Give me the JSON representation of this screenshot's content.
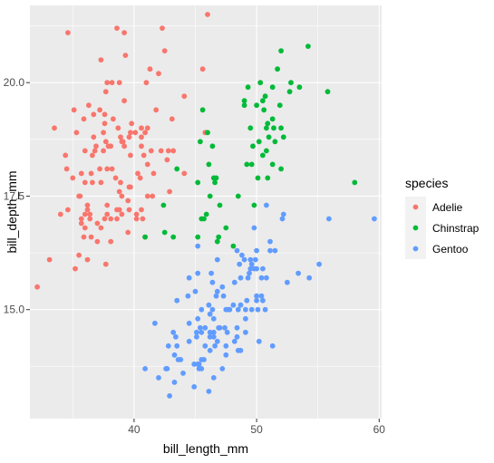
{
  "chart_data": {
    "type": "scatter",
    "title": "",
    "xlabel": "bill_length_mm",
    "ylabel": "bill_depth_mm",
    "xlim": [
      31.5,
      60.2
    ],
    "ylim": [
      12.6,
      21.7
    ],
    "x_ticks": [
      40,
      50,
      60
    ],
    "y_ticks": [
      15.0,
      17.5,
      20.0
    ],
    "x_tick_labels": [
      "40",
      "50",
      "60"
    ],
    "y_tick_labels": [
      "15.0",
      "17.5",
      "20.0"
    ],
    "grid": true,
    "legend": {
      "title": "species",
      "position": "right"
    },
    "series": [
      {
        "name": "Adelie",
        "color": "#F8766D",
        "points": [
          [
            32.1,
            15.5
          ],
          [
            33.1,
            16.1
          ],
          [
            33.5,
            19.0
          ],
          [
            34.0,
            17.1
          ],
          [
            34.4,
            18.4
          ],
          [
            34.5,
            18.1
          ],
          [
            34.6,
            17.2
          ],
          [
            34.6,
            21.1
          ],
          [
            35.0,
            17.9
          ],
          [
            35.1,
            19.4
          ],
          [
            35.2,
            15.9
          ],
          [
            35.3,
            18.9
          ],
          [
            35.5,
            16.2
          ],
          [
            35.5,
            17.5
          ],
          [
            35.6,
            17.5
          ],
          [
            35.7,
            16.9
          ],
          [
            35.7,
            17.0
          ],
          [
            35.7,
            18.0
          ],
          [
            35.9,
            16.6
          ],
          [
            35.9,
            19.2
          ],
          [
            36.0,
            16.8
          ],
          [
            36.0,
            17.1
          ],
          [
            36.0,
            17.8
          ],
          [
            36.0,
            18.5
          ],
          [
            36.2,
            16.1
          ],
          [
            36.2,
            17.2
          ],
          [
            36.2,
            17.3
          ],
          [
            36.3,
            19.5
          ],
          [
            36.4,
            17.0
          ],
          [
            36.4,
            17.1
          ],
          [
            36.5,
            16.6
          ],
          [
            36.5,
            18.0
          ],
          [
            36.6,
            17.8
          ],
          [
            36.6,
            18.4
          ],
          [
            36.7,
            18.8
          ],
          [
            36.7,
            19.3
          ],
          [
            36.8,
            18.5
          ],
          [
            36.9,
            18.6
          ],
          [
            37.0,
            16.5
          ],
          [
            37.0,
            16.9
          ],
          [
            37.2,
            18.1
          ],
          [
            37.2,
            19.4
          ],
          [
            37.3,
            16.8
          ],
          [
            37.3,
            17.8
          ],
          [
            37.3,
            20.5
          ],
          [
            37.5,
            18.5
          ],
          [
            37.5,
            18.9
          ],
          [
            37.6,
            17.0
          ],
          [
            37.6,
            19.1
          ],
          [
            37.6,
            19.3
          ],
          [
            37.7,
            16.0
          ],
          [
            37.7,
            18.7
          ],
          [
            37.7,
            19.8
          ],
          [
            37.8,
            17.1
          ],
          [
            37.8,
            17.3
          ],
          [
            37.8,
            18.1
          ],
          [
            37.8,
            20.0
          ],
          [
            37.9,
            18.6
          ],
          [
            38.1,
            16.5
          ],
          [
            38.1,
            17.0
          ],
          [
            38.1,
            18.6
          ],
          [
            38.2,
            18.1
          ],
          [
            38.2,
            20.0
          ],
          [
            38.3,
            19.2
          ],
          [
            38.5,
            17.9
          ],
          [
            38.6,
            17.0
          ],
          [
            38.6,
            17.2
          ],
          [
            38.6,
            21.2
          ],
          [
            38.7,
            19.0
          ],
          [
            38.8,
            17.2
          ],
          [
            38.8,
            17.6
          ],
          [
            38.8,
            20.0
          ],
          [
            38.9,
            17.8
          ],
          [
            38.9,
            18.8
          ],
          [
            39.0,
            17.1
          ],
          [
            39.0,
            17.5
          ],
          [
            39.0,
            18.7
          ],
          [
            39.1,
            18.7
          ],
          [
            39.2,
            18.6
          ],
          [
            39.2,
            19.6
          ],
          [
            39.2,
            21.1
          ],
          [
            39.3,
            20.6
          ],
          [
            39.5,
            16.7
          ],
          [
            39.5,
            17.4
          ],
          [
            39.6,
            17.2
          ],
          [
            39.6,
            17.7
          ],
          [
            39.6,
            18.8
          ],
          [
            39.7,
            17.7
          ],
          [
            39.7,
            18.4
          ],
          [
            39.7,
            18.9
          ],
          [
            39.8,
            19.1
          ],
          [
            40.1,
            18.9
          ],
          [
            40.2,
            17.0
          ],
          [
            40.2,
            17.1
          ],
          [
            40.3,
            18.0
          ],
          [
            40.5,
            17.9
          ],
          [
            40.6,
            17.2
          ],
          [
            40.6,
            18.6
          ],
          [
            40.6,
            18.8
          ],
          [
            40.6,
            19.0
          ],
          [
            40.7,
            17.0
          ],
          [
            40.8,
            18.4
          ],
          [
            40.9,
            16.6
          ],
          [
            40.9,
            18.9
          ],
          [
            41.0,
            20.0
          ],
          [
            41.1,
            17.5
          ],
          [
            41.1,
            18.2
          ],
          [
            41.1,
            19.0
          ],
          [
            41.3,
            20.3
          ],
          [
            41.4,
            18.5
          ],
          [
            41.5,
            17.5
          ],
          [
            41.6,
            18.0
          ],
          [
            41.8,
            19.4
          ],
          [
            42.0,
            20.2
          ],
          [
            42.2,
            18.5
          ],
          [
            42.3,
            21.2
          ],
          [
            42.5,
            20.7
          ],
          [
            42.7,
            18.3
          ],
          [
            42.8,
            18.5
          ],
          [
            42.9,
            17.6
          ],
          [
            43.1,
            19.2
          ],
          [
            43.2,
            18.5
          ],
          [
            44.1,
            18.0
          ],
          [
            44.1,
            19.7
          ],
          [
            45.6,
            20.3
          ],
          [
            45.8,
            18.9
          ],
          [
            46.0,
            21.5
          ]
        ]
      },
      {
        "name": "Chinstrap",
        "color": "#00BA38",
        "points": [
          [
            40.9,
            16.6
          ],
          [
            42.4,
            17.3
          ],
          [
            42.5,
            16.7
          ],
          [
            43.2,
            16.6
          ],
          [
            43.5,
            18.1
          ],
          [
            45.2,
            16.6
          ],
          [
            45.2,
            17.8
          ],
          [
            45.4,
            18.7
          ],
          [
            45.5,
            17.0
          ],
          [
            45.6,
            19.4
          ],
          [
            45.7,
            17.0
          ],
          [
            45.9,
            17.1
          ],
          [
            46.0,
            18.9
          ],
          [
            46.1,
            18.2
          ],
          [
            46.2,
            17.5
          ],
          [
            46.4,
            18.6
          ],
          [
            46.5,
            17.9
          ],
          [
            46.6,
            17.8
          ],
          [
            46.7,
            17.9
          ],
          [
            46.8,
            16.5
          ],
          [
            46.9,
            16.6
          ],
          [
            47.0,
            17.3
          ],
          [
            47.5,
            16.8
          ],
          [
            48.1,
            16.4
          ],
          [
            48.5,
            17.5
          ],
          [
            49.0,
            19.5
          ],
          [
            49.0,
            19.6
          ],
          [
            49.2,
            18.2
          ],
          [
            49.3,
            19.9
          ],
          [
            49.5,
            19.0
          ],
          [
            49.6,
            18.2
          ],
          [
            49.7,
            18.6
          ],
          [
            49.8,
            17.3
          ],
          [
            50.0,
            19.5
          ],
          [
            50.1,
            17.9
          ],
          [
            50.2,
            18.7
          ],
          [
            50.3,
            20.0
          ],
          [
            50.5,
            18.4
          ],
          [
            50.5,
            19.6
          ],
          [
            50.6,
            19.4
          ],
          [
            50.7,
            19.7
          ],
          [
            50.8,
            18.5
          ],
          [
            50.8,
            19.0
          ],
          [
            50.9,
            17.9
          ],
          [
            50.9,
            19.1
          ],
          [
            51.0,
            18.8
          ],
          [
            51.3,
            18.2
          ],
          [
            51.3,
            19.2
          ],
          [
            51.3,
            19.9
          ],
          [
            51.4,
            19.0
          ],
          [
            51.5,
            18.7
          ],
          [
            51.7,
            20.3
          ],
          [
            51.9,
            19.5
          ],
          [
            52.0,
            18.1
          ],
          [
            52.0,
            19.0
          ],
          [
            52.0,
            20.7
          ],
          [
            52.2,
            18.8
          ],
          [
            52.7,
            19.8
          ],
          [
            52.8,
            20.0
          ],
          [
            53.5,
            19.9
          ],
          [
            54.2,
            20.8
          ],
          [
            55.8,
            19.8
          ],
          [
            58.0,
            17.8
          ]
        ]
      },
      {
        "name": "Gentoo",
        "color": "#619CFF",
        "points": [
          [
            40.9,
            13.7
          ],
          [
            41.7,
            14.7
          ],
          [
            42.0,
            13.5
          ],
          [
            42.6,
            13.7
          ],
          [
            42.7,
            13.7
          ],
          [
            42.8,
            14.2
          ],
          [
            42.9,
            13.1
          ],
          [
            43.2,
            14.5
          ],
          [
            43.3,
            13.4
          ],
          [
            43.3,
            14.0
          ],
          [
            43.4,
            14.4
          ],
          [
            43.5,
            14.2
          ],
          [
            43.5,
            15.2
          ],
          [
            43.6,
            13.9
          ],
          [
            43.8,
            13.9
          ],
          [
            44.0,
            13.6
          ],
          [
            44.4,
            15.3
          ],
          [
            44.5,
            14.3
          ],
          [
            44.5,
            14.7
          ],
          [
            44.5,
            15.7
          ],
          [
            44.9,
            13.3
          ],
          [
            44.9,
            13.8
          ],
          [
            45.0,
            15.4
          ],
          [
            45.1,
            14.4
          ],
          [
            45.1,
            14.5
          ],
          [
            45.2,
            13.8
          ],
          [
            45.2,
            14.8
          ],
          [
            45.2,
            15.8
          ],
          [
            45.2,
            16.4
          ],
          [
            45.3,
            13.7
          ],
          [
            45.3,
            13.8
          ],
          [
            45.4,
            14.6
          ],
          [
            45.5,
            13.7
          ],
          [
            45.5,
            13.9
          ],
          [
            45.5,
            14.5
          ],
          [
            45.5,
            15.0
          ],
          [
            45.7,
            13.9
          ],
          [
            45.8,
            14.2
          ],
          [
            45.8,
            14.6
          ],
          [
            46.1,
            13.2
          ],
          [
            46.1,
            15.1
          ],
          [
            46.2,
            14.1
          ],
          [
            46.2,
            14.4
          ],
          [
            46.2,
            14.5
          ],
          [
            46.2,
            14.9
          ],
          [
            46.3,
            15.8
          ],
          [
            46.4,
            15.0
          ],
          [
            46.4,
            15.6
          ],
          [
            46.5,
            13.5
          ],
          [
            46.5,
            14.4
          ],
          [
            46.5,
            14.5
          ],
          [
            46.5,
            14.8
          ],
          [
            46.6,
            14.2
          ],
          [
            46.7,
            15.3
          ],
          [
            46.8,
            14.3
          ],
          [
            46.8,
            15.4
          ],
          [
            46.8,
            16.1
          ],
          [
            46.9,
            14.6
          ],
          [
            47.0,
            14.6
          ],
          [
            47.2,
            13.7
          ],
          [
            47.2,
            15.5
          ],
          [
            47.3,
            15.3
          ],
          [
            47.4,
            14.6
          ],
          [
            47.5,
            14.0
          ],
          [
            47.5,
            14.2
          ],
          [
            47.5,
            15.0
          ],
          [
            47.6,
            14.5
          ],
          [
            47.7,
            15.0
          ],
          [
            47.8,
            15.0
          ],
          [
            48.1,
            15.1
          ],
          [
            48.2,
            14.3
          ],
          [
            48.2,
            15.6
          ],
          [
            48.4,
            14.4
          ],
          [
            48.4,
            14.6
          ],
          [
            48.4,
            16.3
          ],
          [
            48.5,
            14.1
          ],
          [
            48.5,
            15.0
          ],
          [
            48.6,
            16.0
          ],
          [
            48.7,
            14.1
          ],
          [
            48.7,
            15.1
          ],
          [
            48.7,
            15.7
          ],
          [
            48.8,
            16.2
          ],
          [
            49.0,
            16.1
          ],
          [
            49.1,
            14.5
          ],
          [
            49.1,
            14.8
          ],
          [
            49.1,
            15.0
          ],
          [
            49.2,
            15.2
          ],
          [
            49.3,
            15.7
          ],
          [
            49.4,
            15.8
          ],
          [
            49.5,
            15.9
          ],
          [
            49.5,
            16.1
          ],
          [
            49.6,
            15.0
          ],
          [
            49.6,
            16.0
          ],
          [
            49.8,
            15.9
          ],
          [
            49.8,
            16.8
          ],
          [
            49.9,
            16.1
          ],
          [
            50.0,
            15.2
          ],
          [
            50.0,
            15.3
          ],
          [
            50.0,
            15.9
          ],
          [
            50.0,
            16.3
          ],
          [
            50.1,
            15.0
          ],
          [
            50.2,
            14.3
          ],
          [
            50.4,
            15.3
          ],
          [
            50.4,
            15.7
          ],
          [
            50.5,
            15.2
          ],
          [
            50.5,
            15.9
          ],
          [
            50.7,
            15.0
          ],
          [
            50.8,
            15.7
          ],
          [
            50.8,
            17.3
          ],
          [
            51.1,
            16.3
          ],
          [
            51.1,
            16.5
          ],
          [
            51.3,
            14.2
          ],
          [
            51.5,
            16.3
          ],
          [
            52.1,
            17.0
          ],
          [
            52.2,
            17.1
          ],
          [
            52.5,
            15.6
          ],
          [
            53.4,
            15.8
          ],
          [
            54.3,
            15.7
          ],
          [
            55.1,
            16.0
          ],
          [
            55.9,
            17.0
          ],
          [
            59.6,
            17.0
          ]
        ]
      }
    ]
  }
}
